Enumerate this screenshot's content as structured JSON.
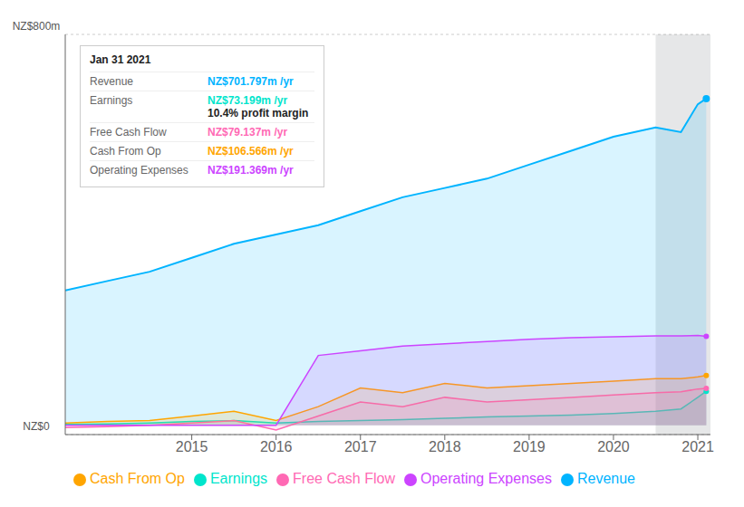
{
  "chart_data": {
    "type": "area",
    "x": [
      2013.5,
      2014.0,
      2014.5,
      2015.0,
      2015.5,
      2016.0,
      2016.5,
      2017.0,
      2017.5,
      2018.0,
      2018.5,
      2019.0,
      2019.5,
      2020.0,
      2020.5,
      2020.8,
      2021.0,
      2021.1
    ],
    "series": [
      {
        "name": "Revenue",
        "color": "#00b4ff",
        "values": [
          290,
          310,
          330,
          360,
          390,
          410,
          430,
          460,
          490,
          510,
          530,
          560,
          590,
          620,
          640,
          630,
          690,
          702
        ]
      },
      {
        "name": "Earnings",
        "color": "#00e5cc",
        "values": [
          2,
          3,
          5,
          8,
          10,
          5,
          8,
          10,
          12,
          15,
          18,
          20,
          22,
          25,
          30,
          35,
          60,
          73
        ]
      },
      {
        "name": "Free Cash Flow",
        "color": "#ff69b4",
        "values": [
          -5,
          -3,
          0,
          5,
          10,
          -10,
          20,
          50,
          40,
          60,
          50,
          55,
          60,
          65,
          70,
          72,
          78,
          79
        ]
      },
      {
        "name": "Cash From Op",
        "color": "#ffa500",
        "values": [
          5,
          8,
          10,
          20,
          30,
          10,
          40,
          80,
          70,
          90,
          80,
          85,
          90,
          95,
          100,
          100,
          104,
          107
        ]
      },
      {
        "name": "Operating Expenses",
        "color": "#cc44ff",
        "values": [
          0,
          0,
          0,
          0,
          0,
          0,
          150,
          160,
          170,
          175,
          180,
          185,
          188,
          190,
          192,
          192,
          193,
          191
        ]
      }
    ],
    "xlim": [
      2013.5,
      2021.15
    ],
    "xticks": [
      2015,
      2016,
      2017,
      2018,
      2019,
      2020,
      2021
    ],
    "ylim": [
      -20,
      840
    ],
    "yticks": [
      0,
      200,
      400,
      600,
      800
    ],
    "grid": true,
    "tick_labels": "x",
    "highlight": {
      "x": [
        2020.5,
        2021.15
      ]
    },
    "annotations": {
      "ylabel_top": "NZ$800m",
      "ylabel_bottom": "NZ$0",
      "tooltip": {
        "title": "Jan 31 2021",
        "rows": [
          {
            "name": "Revenue",
            "value": "NZ$701.797m /yr"
          },
          {
            "name": "Earnings",
            "value": "NZ$73.199m /yr",
            "note": "10.4% profit margin"
          },
          {
            "name": "Free Cash Flow",
            "value": "NZ$79.137m /yr"
          },
          {
            "name": "Cash From Op",
            "value": "NZ$106.566m /yr"
          },
          {
            "name": "Operating Expenses",
            "value": "NZ$191.369m /yr"
          }
        ]
      }
    }
  }
}
